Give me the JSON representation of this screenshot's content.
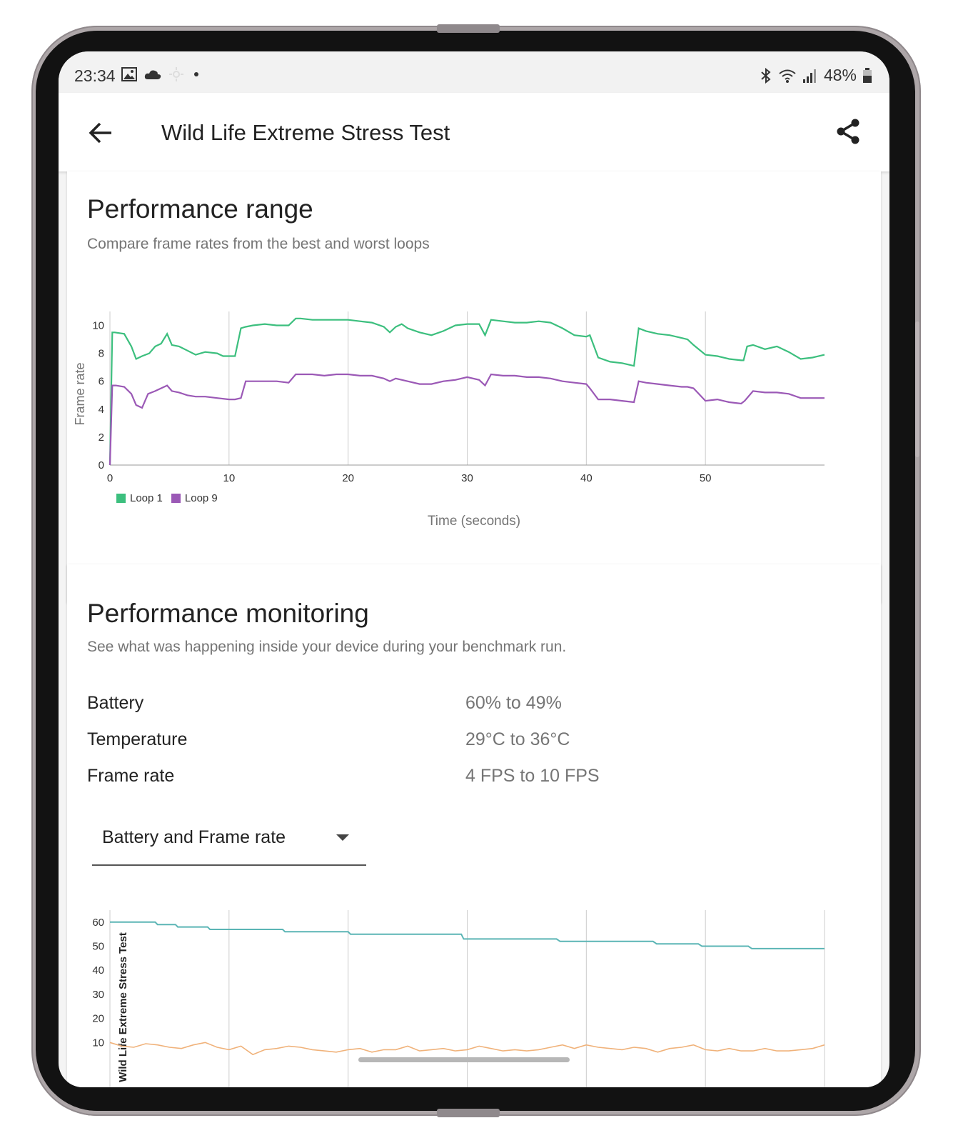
{
  "status_bar": {
    "time": "23:34",
    "battery": "48%",
    "icons": [
      "image-icon",
      "cloud-icon",
      "weather-icon",
      "dot-icon",
      "bluetooth-icon",
      "wifi-icon",
      "signal-icon",
      "battery-icon"
    ]
  },
  "app_bar": {
    "title": "Wild Life Extreme Stress Test",
    "back_icon": "arrow-left-icon",
    "share_icon": "share-icon"
  },
  "range_card": {
    "title": "Performance range",
    "subtitle": "Compare frame rates from the best and worst loops"
  },
  "monitoring_card": {
    "title": "Performance monitoring",
    "subtitle": "See what was happening inside your device during your benchmark run.",
    "metrics": [
      {
        "label": "Battery",
        "value": "60% to 49%"
      },
      {
        "label": "Temperature",
        "value": "29°C to 36°C"
      },
      {
        "label": "Frame rate",
        "value": "4 FPS to 10 FPS"
      }
    ],
    "dropdown": {
      "value": "Battery and Frame rate"
    }
  },
  "colors": {
    "loop1": "#3cbf7e",
    "loop9": "#9b59b6",
    "battery": "#5bb5b5",
    "framerate": "#f0b27a",
    "grid": "#cccccc",
    "text": "#222222",
    "muted": "#757575"
  },
  "chart_data": [
    {
      "type": "line",
      "ylabel": "Frame rate",
      "xlabel": "Time (seconds)",
      "xlim": [
        0,
        60
      ],
      "ylim": [
        0,
        11
      ],
      "x_ticks": [
        0,
        10,
        20,
        30,
        40,
        50
      ],
      "y_ticks": [
        0,
        2,
        4,
        6,
        8,
        10
      ],
      "grid": "vertical",
      "legend": "bottom-left",
      "series": [
        {
          "name": "Loop 1",
          "x": [
            0,
            0.2,
            0.4,
            1.2,
            1.8,
            2.2,
            2.7,
            3.3,
            3.8,
            4.3,
            4.8,
            5.2,
            5.8,
            6.5,
            7.2,
            8,
            9,
            9.5,
            10,
            10.5,
            11,
            11.4,
            12,
            13,
            14,
            15,
            15.6,
            16,
            17,
            18,
            19,
            20,
            21,
            22,
            23,
            23.5,
            24,
            24.5,
            25,
            26,
            27,
            28,
            29,
            30,
            31,
            31.5,
            32,
            33,
            34,
            35,
            36,
            37,
            38,
            39,
            40,
            40.3,
            41,
            42,
            43,
            44,
            44.4,
            45,
            46,
            47,
            48,
            48.5,
            49,
            50,
            51,
            52,
            53,
            53.2,
            53.5,
            54,
            55,
            56,
            57,
            58,
            59,
            60
          ],
          "values": [
            0,
            9.5,
            9.5,
            9.4,
            8.5,
            7.6,
            7.8,
            8,
            8.5,
            8.7,
            9.4,
            8.6,
            8.5,
            8.2,
            7.9,
            8.1,
            8,
            7.8,
            7.8,
            7.8,
            9.8,
            9.9,
            10,
            10.1,
            10,
            10,
            10.5,
            10.5,
            10.4,
            10.4,
            10.4,
            10.4,
            10.3,
            10.2,
            9.9,
            9.5,
            9.9,
            10.1,
            9.8,
            9.5,
            9.3,
            9.6,
            10,
            10.1,
            10.1,
            9.3,
            10.4,
            10.3,
            10.2,
            10.2,
            10.3,
            10.2,
            9.8,
            9.3,
            9.2,
            9.3,
            7.7,
            7.4,
            7.3,
            7.1,
            9.8,
            9.6,
            9.4,
            9.3,
            9.1,
            9,
            8.6,
            7.9,
            7.8,
            7.6,
            7.5,
            7.5,
            8.5,
            8.6,
            8.3,
            8.5,
            8.1,
            7.6,
            7.7,
            7.9
          ]
        },
        {
          "name": "Loop 9",
          "x": [
            0,
            0.2,
            0.5,
            1.2,
            1.8,
            2.2,
            2.7,
            3.2,
            3.8,
            4.3,
            4.8,
            5.2,
            5.8,
            6.5,
            7.2,
            8,
            9,
            10,
            10.5,
            11,
            11.4,
            12,
            13,
            14,
            15,
            15.6,
            16,
            17,
            18,
            19,
            20,
            21,
            22,
            23,
            23.5,
            24,
            25,
            26,
            27,
            28,
            29,
            30,
            31,
            31.5,
            32,
            33,
            34,
            35,
            36,
            37,
            38,
            39,
            40,
            40.3,
            41,
            42,
            43,
            44,
            44.4,
            45,
            46,
            47,
            48,
            48.5,
            49,
            50,
            51,
            52,
            53,
            53.3,
            54,
            55,
            56,
            57,
            58,
            59,
            60
          ],
          "values": [
            0,
            5.7,
            5.7,
            5.6,
            5.1,
            4.3,
            4.1,
            5.1,
            5.3,
            5.5,
            5.7,
            5.3,
            5.2,
            5,
            4.9,
            4.9,
            4.8,
            4.7,
            4.7,
            4.8,
            6,
            6,
            6,
            6,
            5.9,
            6.5,
            6.5,
            6.5,
            6.4,
            6.5,
            6.5,
            6.4,
            6.4,
            6.2,
            6,
            6.2,
            6,
            5.8,
            5.8,
            6,
            6.1,
            6.3,
            6.1,
            5.7,
            6.5,
            6.4,
            6.4,
            6.3,
            6.3,
            6.2,
            6,
            5.9,
            5.8,
            5.5,
            4.7,
            4.7,
            4.6,
            4.5,
            6,
            5.9,
            5.8,
            5.7,
            5.6,
            5.6,
            5.5,
            4.6,
            4.7,
            4.5,
            4.4,
            4.6,
            5.3,
            5.2,
            5.2,
            5.1,
            4.8,
            4.8,
            4.8
          ]
        }
      ]
    },
    {
      "type": "line",
      "ylabel": "Wild Life Extreme Stress Test",
      "xlim": [
        0,
        60
      ],
      "ylim": [
        0,
        65
      ],
      "y_ticks": [
        10,
        20,
        30,
        40,
        50,
        60
      ],
      "grid": "vertical",
      "series": [
        {
          "x": [
            0,
            3.8,
            4,
            5.5,
            5.7,
            8.2,
            8.4,
            14.5,
            14.7,
            20,
            20.2,
            29.5,
            29.7,
            37.5,
            37.8,
            45.6,
            45.9,
            49.4,
            49.7,
            53.6,
            53.9,
            60
          ],
          "values": [
            60,
            60,
            59,
            59,
            58,
            58,
            57,
            57,
            56,
            56,
            55,
            55,
            53,
            53,
            52,
            52,
            51,
            51,
            50,
            50,
            49,
            49
          ]
        },
        {
          "x": [
            0,
            1,
            2,
            3,
            4,
            5,
            6,
            7,
            8,
            9,
            10,
            11,
            12,
            13,
            14,
            15,
            16,
            17,
            18,
            19,
            20,
            21,
            22,
            23,
            24,
            25,
            26,
            27,
            28,
            29,
            30,
            31,
            32,
            33,
            34,
            35,
            36,
            37,
            38,
            39,
            40,
            41,
            42,
            43,
            44,
            45,
            46,
            47,
            48,
            49,
            50,
            51,
            52,
            53,
            54,
            55,
            56,
            57,
            58,
            59,
            60
          ],
          "values": [
            10,
            8.5,
            8,
            9.5,
            9,
            8,
            7.5,
            9,
            10,
            8,
            7,
            8.5,
            5,
            7,
            7.5,
            8.5,
            8,
            7,
            6.5,
            6,
            7,
            7.5,
            6,
            7,
            7,
            8.5,
            6.5,
            7,
            7.5,
            6.5,
            7,
            8.5,
            7.5,
            6.5,
            7,
            6.5,
            7,
            8,
            9,
            7.5,
            9,
            8,
            7.5,
            7,
            8,
            7.5,
            6,
            7.5,
            8,
            9,
            7,
            6.5,
            7.5,
            6.5,
            6.5,
            7.5,
            6.5,
            6.5,
            7,
            7.5,
            9
          ]
        }
      ]
    }
  ]
}
